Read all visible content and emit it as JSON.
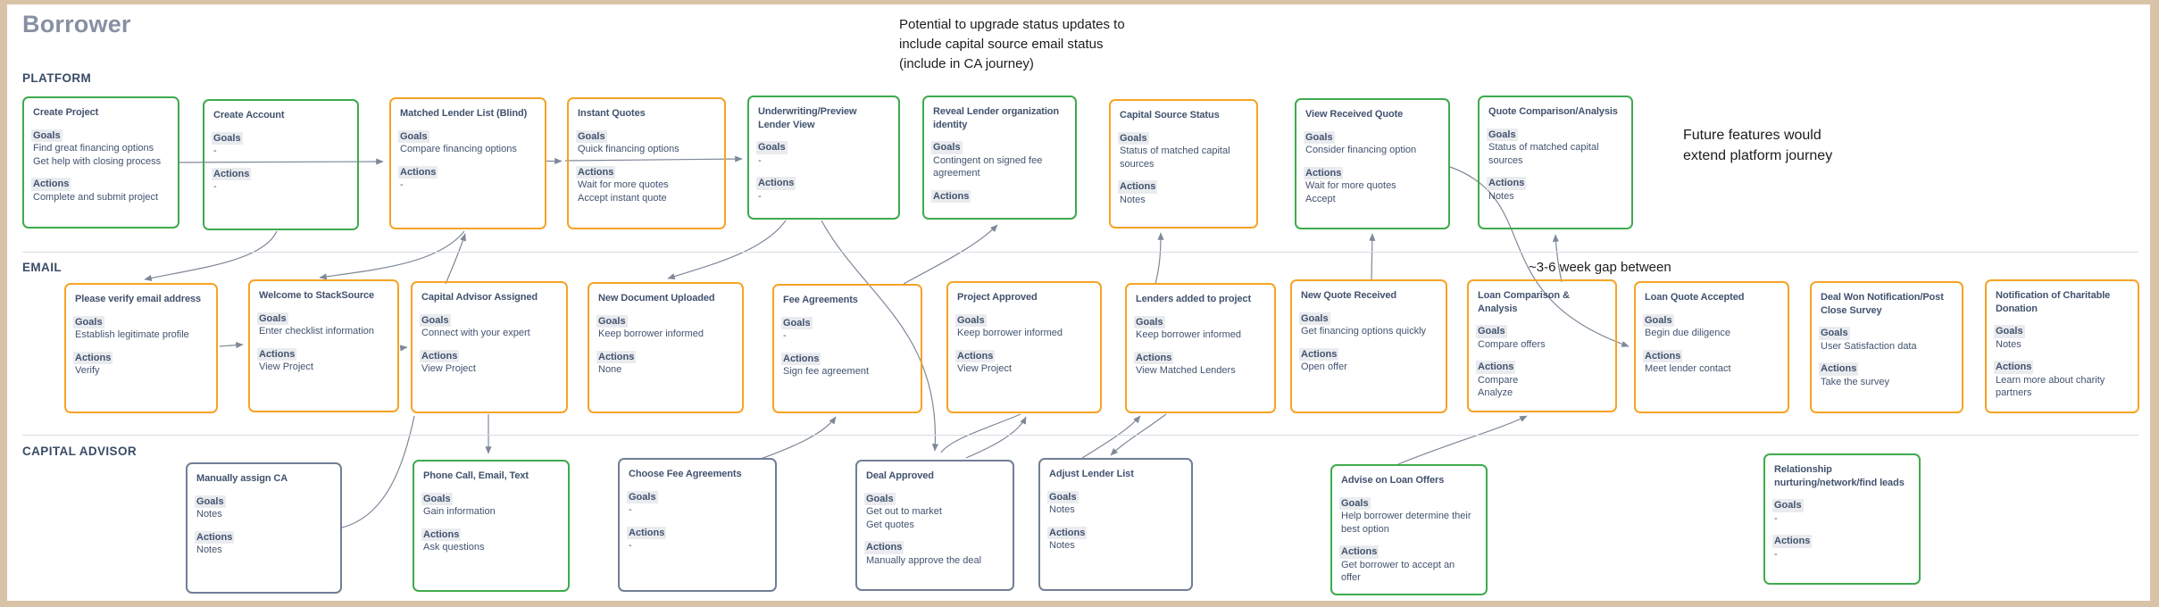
{
  "page": {
    "title": "Borrower"
  },
  "labels": {
    "goals": "Goals",
    "actions": "Actions"
  },
  "colors": {
    "orange": "#F6A325",
    "green": "#3FAA4D",
    "slate": "#717E96"
  },
  "annotations": {
    "top_note": "Potential to upgrade status updates to\ninclude capital source email status\n(include in CA journey)",
    "future_note": "Future features would\nextend platform journey",
    "gap_note": "~3-6 week gap between"
  },
  "lanes": [
    {
      "id": "platform",
      "label": "PLATFORM",
      "cards": [
        {
          "id": "create-project",
          "color": "green",
          "title": "Create Project",
          "goals": [
            "Find great financing options",
            "Get help with closing process"
          ],
          "actions": [
            "Complete and submit project"
          ]
        },
        {
          "id": "create-account",
          "color": "green",
          "title": "Create Account",
          "goals": [
            "-"
          ],
          "actions": [
            "-"
          ]
        },
        {
          "id": "matched-lender-list",
          "color": "orange",
          "title": "Matched Lender List (Blind)",
          "goals": [
            "Compare financing options"
          ],
          "actions": [
            "-"
          ]
        },
        {
          "id": "instant-quotes",
          "color": "orange",
          "title": "Instant Quotes",
          "goals": [
            "Quick financing options"
          ],
          "actions": [
            "Wait for more quotes",
            "Accept instant quote"
          ]
        },
        {
          "id": "underwriting-preview",
          "color": "green",
          "title": "Underwriting/Preview Lender View",
          "goals": [
            "-"
          ],
          "actions": [
            "-"
          ]
        },
        {
          "id": "reveal-lender-identity",
          "color": "green",
          "title": "Reveal Lender organization identity",
          "goals": [
            "Contingent on signed fee agreement"
          ],
          "actions": []
        },
        {
          "id": "capital-source-status",
          "color": "orange",
          "title": "Capital Source Status",
          "goals": [
            "Status of matched capital sources"
          ],
          "actions": [
            "Notes"
          ]
        },
        {
          "id": "view-received-quote",
          "color": "green",
          "title": "View Received Quote",
          "goals": [
            "Consider financing option"
          ],
          "actions": [
            "Wait for more quotes",
            "Accept"
          ]
        },
        {
          "id": "quote-comparison-analysis",
          "color": "green",
          "title": "Quote Comparison/Analysis",
          "goals": [
            "Status of matched capital sources"
          ],
          "actions": [
            "Notes"
          ]
        }
      ]
    },
    {
      "id": "email",
      "label": "EMAIL",
      "cards": [
        {
          "id": "please-verify-email",
          "color": "orange",
          "title": "Please verify email address",
          "goals": [
            "Establish legitimate profile"
          ],
          "actions": [
            "Verify"
          ]
        },
        {
          "id": "welcome-stacksource",
          "color": "orange",
          "title": "Welcome to StackSource",
          "goals": [
            "Enter checklist information"
          ],
          "actions": [
            "View Project"
          ]
        },
        {
          "id": "capital-advisor-assigned",
          "color": "orange",
          "title": "Capital Advisor Assigned",
          "goals": [
            "Connect with your expert"
          ],
          "actions": [
            "View Project"
          ]
        },
        {
          "id": "new-document-uploaded",
          "color": "orange",
          "title": "New Document Uploaded",
          "goals": [
            "Keep borrower informed"
          ],
          "actions": [
            "None"
          ]
        },
        {
          "id": "fee-agreements",
          "color": "orange",
          "title": "Fee Agreements",
          "goals": [
            "-"
          ],
          "actions": [
            "Sign fee agreement"
          ]
        },
        {
          "id": "project-approved",
          "color": "orange",
          "title": "Project Approved",
          "goals": [
            "Keep borrower informed"
          ],
          "actions": [
            "View Project"
          ]
        },
        {
          "id": "lenders-added-project",
          "color": "orange",
          "title": "Lenders added to project",
          "goals": [
            "Keep borrower informed"
          ],
          "actions": [
            "View Matched Lenders"
          ]
        },
        {
          "id": "new-quote-received",
          "color": "orange",
          "title": "New Quote Received",
          "goals": [
            "Get financing options quickly"
          ],
          "actions": [
            "Open offer"
          ]
        },
        {
          "id": "loan-comparison-analysis",
          "color": "orange",
          "title": "Loan Comparison & Analysis",
          "goals": [
            "Compare offers"
          ],
          "actions": [
            "Compare",
            "Analyze"
          ]
        },
        {
          "id": "loan-quote-accepted",
          "color": "orange",
          "title": "Loan Quote Accepted",
          "goals": [
            "Begin due diligence"
          ],
          "actions": [
            "Meet lender contact"
          ]
        },
        {
          "id": "deal-won-survey",
          "color": "orange",
          "title": "Deal Won Notification/Post Close Survey",
          "goals": [
            "User Satisfaction data"
          ],
          "actions": [
            "Take the survey"
          ]
        },
        {
          "id": "charitable-donation",
          "color": "orange",
          "title": "Notification of Charitable Donation",
          "goals": [
            "Notes"
          ],
          "actions": [
            "Learn more about charity partners"
          ]
        }
      ]
    },
    {
      "id": "capital-advisor",
      "label": "CAPITAL ADVISOR",
      "cards": [
        {
          "id": "manually-assign-ca",
          "color": "slate",
          "title": "Manually assign CA",
          "goals": [
            "Notes"
          ],
          "actions": [
            "Notes"
          ]
        },
        {
          "id": "phone-call-email-text",
          "color": "green",
          "title": "Phone Call, Email, Text",
          "goals": [
            "Gain information"
          ],
          "actions": [
            "Ask questions"
          ]
        },
        {
          "id": "choose-fee-agreements",
          "color": "slate",
          "title": "Choose Fee Agreements",
          "goals": [
            "-"
          ],
          "actions": [
            "-"
          ]
        },
        {
          "id": "deal-approved",
          "color": "slate",
          "title": "Deal Approved",
          "goals": [
            "Get out to market",
            "Get quotes"
          ],
          "actions": [
            "Manually approve the deal"
          ]
        },
        {
          "id": "adjust-lender-list",
          "color": "slate",
          "title": "Adjust Lender List",
          "goals": [
            "Notes"
          ],
          "actions": [
            "Notes"
          ]
        },
        {
          "id": "advise-loan-offers",
          "color": "green",
          "title": "Advise on Loan Offers",
          "goals": [
            "Help borrower determine their best option"
          ],
          "actions": [
            "Get borrower to accept an offer"
          ]
        },
        {
          "id": "relationship-nurturing",
          "color": "green",
          "title": "Relationship nurturing/network/find leads",
          "goals": [
            "-"
          ],
          "actions": [
            "-"
          ]
        }
      ]
    }
  ]
}
